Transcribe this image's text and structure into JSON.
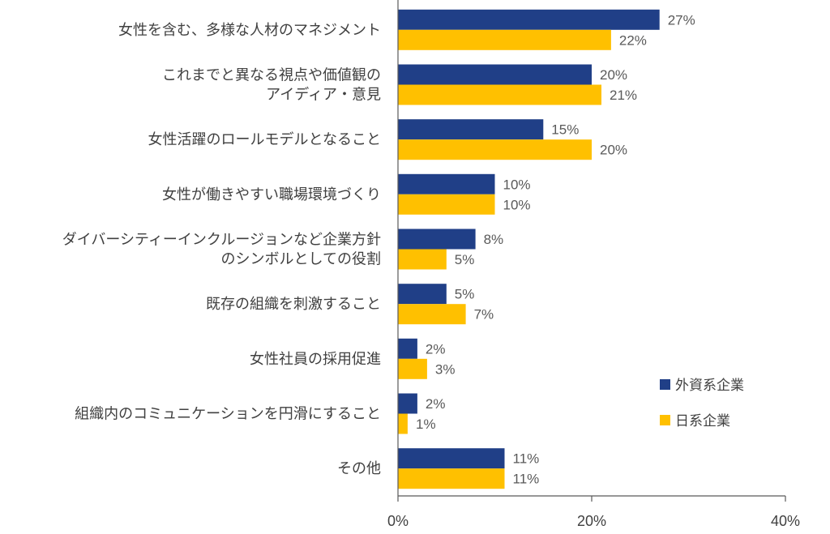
{
  "chart_data": {
    "type": "bar",
    "orientation": "horizontal",
    "categories": [
      [
        "女性を含む、多様な人材のマネジメント"
      ],
      [
        "これまでと異なる視点や価値観の",
        "アイディア・意見"
      ],
      [
        "女性活躍のロールモデルとなること"
      ],
      [
        "女性が働きやすい職場環境づくり"
      ],
      [
        "ダイバーシティーインクルージョンなど企業方針",
        "のシンボルとしての役割"
      ],
      [
        "既存の組織を刺激すること"
      ],
      [
        "女性社員の採用促進"
      ],
      [
        "組織内のコミュニケーションを円滑にすること"
      ],
      [
        "その他"
      ]
    ],
    "series": [
      {
        "name": "外資系企業",
        "color": "#203f87",
        "values": [
          27,
          20,
          15,
          10,
          8,
          5,
          2,
          2,
          11
        ],
        "labels": [
          "27%",
          "20%",
          "15%",
          "10%",
          "8%",
          "5%",
          "2%",
          "2%",
          "11%"
        ]
      },
      {
        "name": "日系企業",
        "color": "#ffc000",
        "values": [
          22,
          21,
          20,
          10,
          5,
          7,
          3,
          1,
          11
        ],
        "labels": [
          "22%",
          "21%",
          "20%",
          "10%",
          "5%",
          "7%",
          "3%",
          "1%",
          "11%"
        ]
      }
    ],
    "xlim": [
      0,
      40
    ],
    "xticks": [
      0,
      20,
      40
    ],
    "xtick_labels": [
      "0%",
      "20%",
      "40%"
    ],
    "legend_position": "right"
  }
}
